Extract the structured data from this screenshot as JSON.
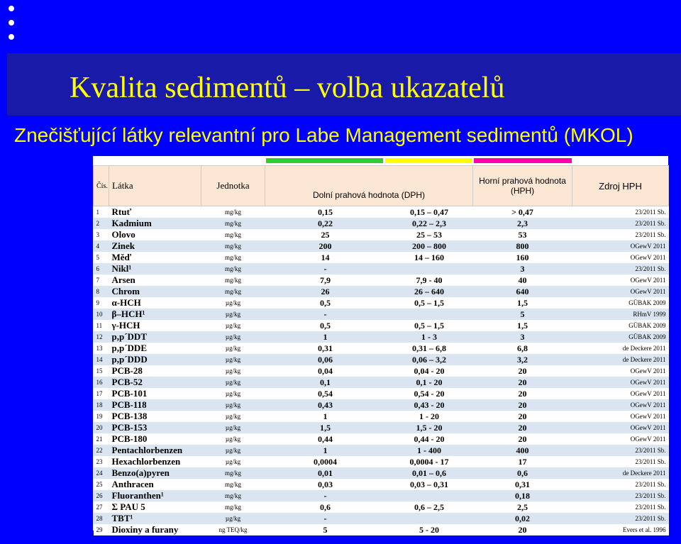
{
  "title": "Kvalita sedimentů – volba ukazatelů",
  "subtitle": "Znečišťující látky relevantní pro Labe  Management sedimentů (MKOL)",
  "header": {
    "c_num": "Čís.",
    "c_name": "Látka",
    "c_unit": "Jednotka",
    "c_lower": "Dolní prahová hodnota   (DPH)",
    "c_upper": "Horní prahová hodnota (HPH)",
    "c_source": "Zdroj HPH"
  },
  "colors": {
    "green": "#33cc33",
    "yellow": "#ffff00",
    "magenta": "#ff00aa",
    "title": "#ffff00",
    "background": "#0000ff"
  },
  "rows": [
    {
      "n": "1",
      "name": "Rtuť",
      "unit": "mg/kg",
      "dph": "0,15",
      "range": "0,15 – 0,47",
      "hph": "> 0,47",
      "src": "23/2011 Sb."
    },
    {
      "n": "2",
      "name": "Kadmium",
      "unit": "mg/kg",
      "dph": "0,22",
      "range": "0,22 – 2,3",
      "hph": "2,3",
      "src": "23/2011 Sb."
    },
    {
      "n": "3",
      "name": "Olovo",
      "unit": "mg/kg",
      "dph": "25",
      "range": "25 – 53",
      "hph": "53",
      "src": "23/2011 Sb."
    },
    {
      "n": "4",
      "name": "Zinek",
      "unit": "mg/kg",
      "dph": "200",
      "range": "200 – 800",
      "hph": "800",
      "src": "OGewV 2011"
    },
    {
      "n": "5",
      "name": "Měď",
      "unit": "mg/kg",
      "dph": "14",
      "range": "14 – 160",
      "hph": "160",
      "src": "OGewV 2011"
    },
    {
      "n": "6",
      "name": "Nikl¹",
      "unit": "mg/kg",
      "dph": "-",
      "range": "",
      "hph": "3",
      "src": "23/2011 Sb."
    },
    {
      "n": "7",
      "name": "Arsen",
      "unit": "mg/kg",
      "dph": "7,9",
      "range": "7,9 - 40",
      "hph": "40",
      "src": "OGewV 2011"
    },
    {
      "n": "8",
      "name": "Chrom",
      "unit": "mg/kg",
      "dph": "26",
      "range": "26 – 640",
      "hph": "640",
      "src": "OGewV 2011"
    },
    {
      "n": "9",
      "name": "α-HCH",
      "unit": "µg/kg",
      "dph": "0,5",
      "range": "0,5 – 1,5",
      "hph": "1,5",
      "src": "GÜBAK 2009"
    },
    {
      "n": "10",
      "name": "β–HCH¹",
      "unit": "µg/kg",
      "dph": "-",
      "range": "",
      "hph": "5",
      "src": "RHmV 1999"
    },
    {
      "n": "11",
      "name": "γ-HCH",
      "unit": "µg/kg",
      "dph": "0,5",
      "range": "0,5 – 1,5",
      "hph": "1,5",
      "src": "GÜBAK 2009"
    },
    {
      "n": "12",
      "name": "p,p´DDT",
      "unit": "µg/kg",
      "dph": "1",
      "range": "1 - 3",
      "hph": "3",
      "src": "GÜBAK 2009"
    },
    {
      "n": "13",
      "name": "p,p´DDE",
      "unit": "µg/kg",
      "dph": "0,31",
      "range": "0,31 – 6,8",
      "hph": "6,8",
      "src": "de Deckere 2011"
    },
    {
      "n": "14",
      "name": "p,p´DDD",
      "unit": "µg/kg",
      "dph": "0,06",
      "range": "0,06 – 3,2",
      "hph": "3,2",
      "src": "de Deckere 2011"
    },
    {
      "n": "15",
      "name": "PCB-28",
      "unit": "µg/kg",
      "dph": "0,04",
      "range": "0,04 - 20",
      "hph": "20",
      "src": "OGewV 2011"
    },
    {
      "n": "16",
      "name": "PCB-52",
      "unit": "µg/kg",
      "dph": "0,1",
      "range": "0,1 - 20",
      "hph": "20",
      "src": "OGewV 2011"
    },
    {
      "n": "17",
      "name": "PCB-101",
      "unit": "µg/kg",
      "dph": "0,54",
      "range": "0,54 - 20",
      "hph": "20",
      "src": "OGewV 2011"
    },
    {
      "n": "18",
      "name": "PCB-118",
      "unit": "µg/kg",
      "dph": "0,43",
      "range": "0,43 - 20",
      "hph": "20",
      "src": "OGewV 2011"
    },
    {
      "n": "19",
      "name": "PCB-138",
      "unit": "µg/kg",
      "dph": "1",
      "range": "1 - 20",
      "hph": "20",
      "src": "OGewV 2011"
    },
    {
      "n": "20",
      "name": "PCB-153",
      "unit": "µg/kg",
      "dph": "1,5",
      "range": "1,5 - 20",
      "hph": "20",
      "src": "OGewV 2011"
    },
    {
      "n": "21",
      "name": "PCB-180",
      "unit": "µg/kg",
      "dph": "0,44",
      "range": "0,44 - 20",
      "hph": "20",
      "src": "OGewV 2011"
    },
    {
      "n": "22",
      "name": "Pentachlorbenzen",
      "unit": "µg/kg",
      "dph": "1",
      "range": "1 - 400",
      "hph": "400",
      "src": "23/2011 Sb."
    },
    {
      "n": "23",
      "name": "Hexachlorbenzen",
      "unit": "µg/kg",
      "dph": "0,0004",
      "range": "0,0004 - 17",
      "hph": "17",
      "src": "23/2011 Sb."
    },
    {
      "n": "24",
      "name": "Benzo(a)pyren",
      "unit": "mg/kg",
      "dph": "0,01",
      "range": "0,01 – 0,6",
      "hph": "0,6",
      "src": "de Deckere 2011"
    },
    {
      "n": "25",
      "name": "Anthracen",
      "unit": "mg/kg",
      "dph": "0,03",
      "range": "0,03 – 0,31",
      "hph": "0,31",
      "src": "23/2011 Sb."
    },
    {
      "n": "26",
      "name": "Fluoranthen¹",
      "unit": "mg/kg",
      "dph": "-",
      "range": "",
      "hph": "0,18",
      "src": "23/2011 Sb."
    },
    {
      "n": "27",
      "name": "Σ PAU 5",
      "unit": "mg/kg",
      "dph": "0,6",
      "range": "0,6 – 2,5",
      "hph": "2,5",
      "src": "23/2011 Sb."
    },
    {
      "n": "28",
      "name": "TBT¹",
      "unit": "µg/kg",
      "dph": "-",
      "range": "",
      "hph": "0,02",
      "src": "23/2011 Sb."
    },
    {
      "n": "29",
      "name": "Dioxiny a furany",
      "unit": "ng TEQ/kg",
      "dph": "5",
      "range": "5 - 20",
      "hph": "20",
      "src": "Evers et al. 1996"
    }
  ]
}
